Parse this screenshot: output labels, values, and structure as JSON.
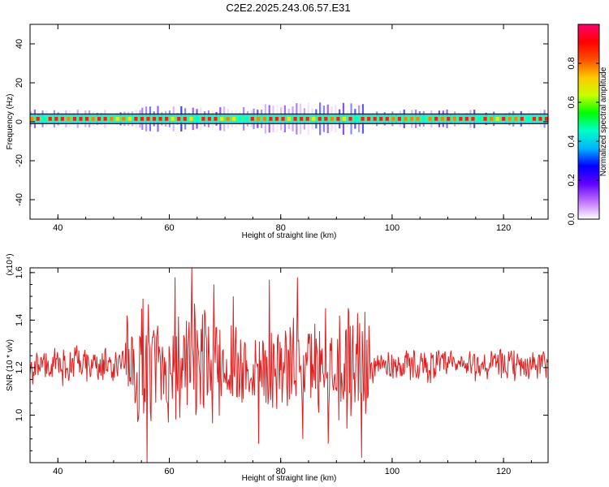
{
  "title": "C2E2.2025.243.06.57.E31",
  "chart_data": [
    {
      "type": "heatmap",
      "panel": "spectrogram",
      "xlabel": "Height of straight line (km)",
      "ylabel": "Frequency (Hz)",
      "xlim": [
        35,
        128
      ],
      "ylim": [
        -50,
        50
      ],
      "xticks": [
        40,
        60,
        80,
        100,
        120
      ],
      "yticks": [
        -40,
        -20,
        0,
        20,
        40
      ],
      "colorbar": {
        "label": "Normalized spectral amplitude",
        "range": [
          0,
          1
        ],
        "ticks": [
          "0.0",
          "0.2",
          "0.4",
          "0.6",
          "0.8"
        ],
        "colors": [
          "#ffffff",
          "#c070ff",
          "#6000ff",
          "#0000ff",
          "#00b4ff",
          "#00ffc8",
          "#00ff00",
          "#c8ff00",
          "#ffc800",
          "#ff5000",
          "#ff0000",
          "#ff0070"
        ]
      },
      "band": {
        "center_hz": 1.5,
        "core_halfwidth_hz": 1,
        "edge_halfwidth_hz": 2.5,
        "spread_segments": [
          {
            "x": [
              35,
              55
            ],
            "halfwidth_hz": 4
          },
          {
            "x": [
              55,
              75
            ],
            "halfwidth_hz": 6
          },
          {
            "x": [
              75,
              95
            ],
            "halfwidth_hz": 7
          },
          {
            "x": [
              95,
              128
            ],
            "halfwidth_hz": 4
          }
        ]
      }
    },
    {
      "type": "line",
      "panel": "snr",
      "xlabel": "Height of straight line (km)",
      "ylabel": "SNR (10 * v/v)",
      "yscale_label": "(x10⁴)",
      "xlim": [
        35,
        128
      ],
      "ylim": [
        0.8,
        1.62
      ],
      "xticks": [
        40,
        60,
        80,
        100,
        120
      ],
      "yticks": [
        "1.0",
        "1.2",
        "1.4",
        "1.6"
      ],
      "yticks_values": [
        1.0,
        1.2,
        1.4,
        1.6
      ],
      "series": [
        {
          "color": "#e02020",
          "baseline": 1.21,
          "envelope": [
            {
              "x": [
                35,
                52
              ],
              "amplitude": 0.09
            },
            {
              "x": [
                52,
                70
              ],
              "amplitude": 0.28
            },
            {
              "x": [
                70,
                90
              ],
              "amplitude": 0.22
            },
            {
              "x": [
                90,
                96
              ],
              "amplitude": 0.3
            },
            {
              "x": [
                96,
                128
              ],
              "amplitude": 0.08
            }
          ],
          "peaks": [
            {
              "x": 56.0,
              "y": 0.8
            },
            {
              "x": 55.3,
              "y": 1.49
            },
            {
              "x": 61.0,
              "y": 1.58
            },
            {
              "x": 64.0,
              "y": 1.63
            },
            {
              "x": 68.0,
              "y": 1.55
            },
            {
              "x": 71.5,
              "y": 1.5
            },
            {
              "x": 78.0,
              "y": 1.57
            },
            {
              "x": 83.0,
              "y": 1.58
            },
            {
              "x": 88.0,
              "y": 1.45
            },
            {
              "x": 93.8,
              "y": 1.43
            },
            {
              "x": 94.5,
              "y": 0.82
            },
            {
              "x": 76.0,
              "y": 0.88
            },
            {
              "x": 84.0,
              "y": 0.9
            },
            {
              "x": 88.5,
              "y": 0.88
            }
          ]
        }
      ]
    }
  ]
}
